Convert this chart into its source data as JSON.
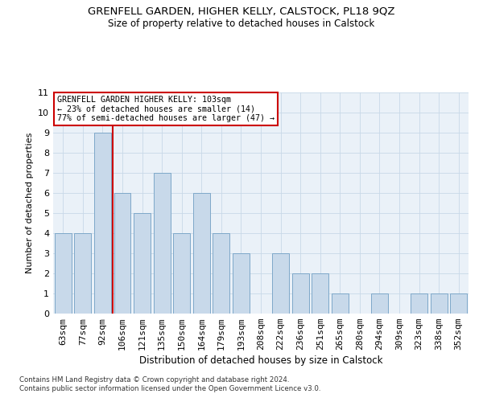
{
  "title1": "GRENFELL GARDEN, HIGHER KELLY, CALSTOCK, PL18 9QZ",
  "title2": "Size of property relative to detached houses in Calstock",
  "xlabel": "Distribution of detached houses by size in Calstock",
  "ylabel": "Number of detached properties",
  "categories": [
    "63sqm",
    "77sqm",
    "92sqm",
    "106sqm",
    "121sqm",
    "135sqm",
    "150sqm",
    "164sqm",
    "179sqm",
    "193sqm",
    "208sqm",
    "222sqm",
    "236sqm",
    "251sqm",
    "265sqm",
    "280sqm",
    "294sqm",
    "309sqm",
    "323sqm",
    "338sqm",
    "352sqm"
  ],
  "values": [
    4,
    4,
    9,
    6,
    5,
    7,
    4,
    6,
    4,
    3,
    0,
    3,
    2,
    2,
    1,
    0,
    1,
    0,
    1,
    1,
    1
  ],
  "bar_color": "#c8d9ea",
  "bar_edge_color": "#7ea8c9",
  "vline_x": 2.5,
  "vline_color": "#cc0000",
  "annotation_text": "GRENFELL GARDEN HIGHER KELLY: 103sqm\n← 23% of detached houses are smaller (14)\n77% of semi-detached houses are larger (47) →",
  "annotation_box_color": "#ffffff",
  "annotation_box_edge": "#cc0000",
  "ylim": [
    0,
    11
  ],
  "yticks": [
    0,
    1,
    2,
    3,
    4,
    5,
    6,
    7,
    8,
    9,
    10,
    11
  ],
  "footer": "Contains HM Land Registry data © Crown copyright and database right 2024.\nContains public sector information licensed under the Open Government Licence v3.0.",
  "grid_color": "#c8d8e8",
  "background_color": "#eaf1f8"
}
